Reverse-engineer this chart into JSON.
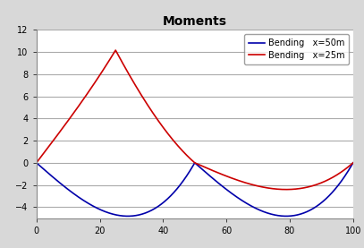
{
  "title": "Moments",
  "legend_blue": "Bending   x=50m",
  "legend_red": "Bending   x=25m",
  "blue_color": "#0000AA",
  "red_color": "#CC0000",
  "xlim": [
    0,
    100
  ],
  "ylim": [
    -5,
    12
  ],
  "yticks": [
    -4,
    -2,
    0,
    2,
    4,
    6,
    8,
    10,
    12
  ],
  "xticks": [
    0,
    20,
    40,
    60,
    80,
    100
  ],
  "span": 50,
  "xA": 25,
  "xB": 50,
  "plot_bg": "#ffffff",
  "fig_bg": "#d8d8d8",
  "grid_color": "#aaaaaa",
  "title_fontsize": 10,
  "legend_fontsize": 7,
  "tick_fontsize": 7
}
